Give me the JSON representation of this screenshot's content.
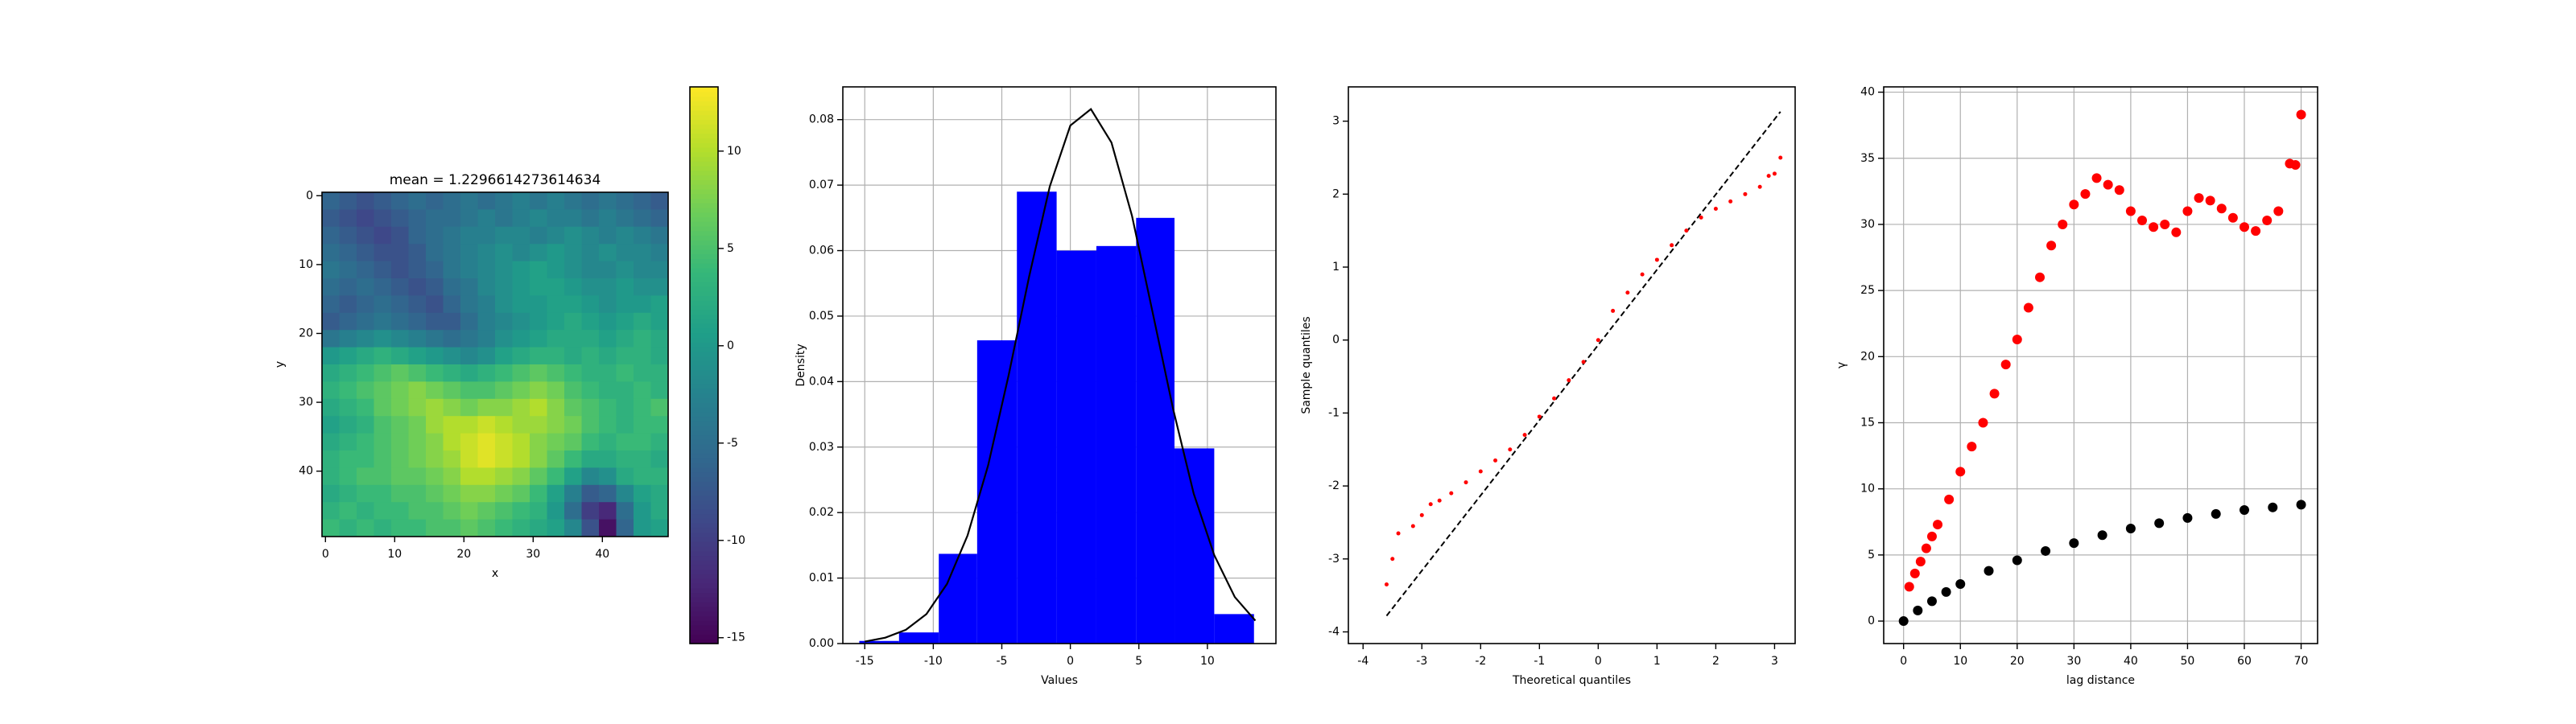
{
  "chart_data": [
    {
      "type": "heatmap",
      "title": "mean = 1.2296614273614634",
      "xlabel": "x",
      "ylabel": "y",
      "colormap": "viridis",
      "xlim": [
        -0.5,
        49.5
      ],
      "ylim": [
        49.5,
        -0.5
      ],
      "xticks": [
        0,
        10,
        20,
        30,
        40
      ],
      "yticks": [
        0,
        10,
        20,
        30,
        40
      ],
      "clim": [
        -15.3,
        13.3
      ],
      "cticks": [
        -15,
        -10,
        -5,
        0,
        5,
        10
      ],
      "z": [
        [
          -6,
          -7,
          -8,
          -7,
          -6,
          -5,
          -6,
          -5,
          -4,
          -5,
          -4,
          -3,
          -4,
          -3,
          -4,
          -5,
          -4,
          -5,
          -6,
          -7
        ],
        [
          -7,
          -8,
          -9,
          -8,
          -7,
          -6,
          -5,
          -5,
          -4,
          -3,
          -4,
          -3,
          -2,
          -3,
          -3,
          -4,
          -3,
          -4,
          -5,
          -6
        ],
        [
          -6,
          -7,
          -8,
          -9,
          -8,
          -6,
          -5,
          -4,
          -3,
          -3,
          -2,
          -2,
          -3,
          -2,
          -1,
          -2,
          -3,
          -2,
          -3,
          -4
        ],
        [
          -5,
          -6,
          -7,
          -8,
          -8,
          -7,
          -5,
          -4,
          -3,
          -2,
          -1,
          -2,
          -1,
          0,
          -1,
          -2,
          -1,
          -2,
          -2,
          -3
        ],
        [
          -4,
          -5,
          -6,
          -7,
          -8,
          -7,
          -6,
          -4,
          -3,
          -2,
          -1,
          0,
          1,
          0,
          -1,
          -2,
          -2,
          -1,
          -2,
          -2
        ],
        [
          -5,
          -6,
          -5,
          -6,
          -7,
          -8,
          -7,
          -5,
          -4,
          -2,
          -1,
          0,
          1,
          1,
          0,
          -1,
          -1,
          0,
          -1,
          -1
        ],
        [
          -6,
          -7,
          -6,
          -5,
          -6,
          -7,
          -8,
          -6,
          -4,
          -3,
          -1,
          0,
          0,
          1,
          1,
          0,
          -1,
          0,
          0,
          1
        ],
        [
          -7,
          -6,
          -5,
          -4,
          -5,
          -6,
          -7,
          -7,
          -5,
          -3,
          -2,
          -1,
          0,
          1,
          2,
          1,
          0,
          1,
          2,
          1
        ],
        [
          -4,
          -3,
          -2,
          -1,
          -2,
          -3,
          -4,
          -5,
          -4,
          -3,
          -1,
          0,
          1,
          2,
          2,
          2,
          1,
          2,
          3,
          2
        ],
        [
          0,
          1,
          2,
          3,
          2,
          1,
          0,
          -1,
          -2,
          -1,
          1,
          2,
          3,
          3,
          2,
          3,
          2,
          3,
          3,
          2
        ],
        [
          2,
          3,
          4,
          5,
          6,
          5,
          4,
          3,
          2,
          3,
          4,
          5,
          6,
          5,
          4,
          3,
          3,
          4,
          3,
          3
        ],
        [
          3,
          4,
          5,
          6,
          7,
          8,
          7,
          6,
          5,
          5,
          6,
          7,
          8,
          7,
          5,
          4,
          3,
          3,
          4,
          3
        ],
        [
          2,
          3,
          4,
          6,
          7,
          8,
          9,
          8,
          7,
          8,
          8,
          9,
          10,
          8,
          6,
          5,
          4,
          3,
          4,
          5
        ],
        [
          1,
          2,
          3,
          5,
          6,
          7,
          9,
          10,
          10,
          11,
          10,
          9,
          9,
          8,
          7,
          5,
          4,
          3,
          4,
          4
        ],
        [
          2,
          3,
          4,
          5,
          6,
          7,
          8,
          10,
          11,
          12,
          11,
          10,
          8,
          7,
          6,
          4,
          3,
          4,
          4,
          3
        ],
        [
          3,
          4,
          4,
          5,
          6,
          7,
          8,
          9,
          11,
          12,
          11,
          10,
          8,
          6,
          4,
          2,
          2,
          3,
          3,
          2
        ],
        [
          3,
          4,
          5,
          5,
          6,
          6,
          7,
          8,
          10,
          10,
          9,
          8,
          6,
          4,
          1,
          -2,
          -1,
          2,
          3,
          3
        ],
        [
          2,
          3,
          4,
          4,
          5,
          5,
          6,
          7,
          8,
          8,
          7,
          6,
          4,
          1,
          -3,
          -7,
          -6,
          -2,
          1,
          2
        ],
        [
          3,
          4,
          3,
          4,
          4,
          5,
          5,
          6,
          7,
          6,
          5,
          4,
          3,
          0,
          -5,
          -10,
          -12,
          -5,
          0,
          2
        ],
        [
          4,
          3,
          4,
          3,
          4,
          4,
          5,
          5,
          6,
          5,
          4,
          3,
          2,
          1,
          -2,
          -8,
          -14,
          -6,
          0,
          1
        ]
      ]
    },
    {
      "type": "histogram",
      "xlabel": "Values",
      "ylabel": "Density",
      "color": "#0000ff",
      "grid": true,
      "xlim": [
        -16.6,
        15.0
      ],
      "ylim": [
        0,
        0.085
      ],
      "xticks": [
        -15,
        -10,
        -5,
        0,
        5,
        10
      ],
      "yticks": [
        {
          "value": 0,
          "label": "0.00"
        },
        {
          "value": 0.01,
          "label": "0.01"
        },
        {
          "value": 0.02,
          "label": "0.02"
        },
        {
          "value": 0.03,
          "label": "0.03"
        },
        {
          "value": 0.04,
          "label": "0.04"
        },
        {
          "value": 0.05,
          "label": "0.05"
        },
        {
          "value": 0.06,
          "label": "0.06"
        },
        {
          "value": 0.07,
          "label": "0.07"
        },
        {
          "value": 0.08,
          "label": "0.08"
        }
      ],
      "bins": [
        -15.4,
        -12.5,
        -9.6,
        -6.8,
        -3.9,
        -1.0,
        1.9,
        4.8,
        7.6,
        10.5,
        13.4
      ],
      "values": [
        0.0004,
        0.0017,
        0.0137,
        0.0463,
        0.069,
        0.06,
        0.0607,
        0.065,
        0.0298,
        0.0045
      ],
      "curve": {
        "color": "#000000",
        "x": [
          -15,
          -13.5,
          -12,
          -10.5,
          -9,
          -7.5,
          -6,
          -4.5,
          -3,
          -1.5,
          0,
          1.5,
          3,
          4.5,
          6,
          7.5,
          9,
          10.5,
          12,
          13.5
        ],
        "y": [
          0.0003,
          0.0009,
          0.0021,
          0.0045,
          0.0091,
          0.0165,
          0.0272,
          0.041,
          0.0561,
          0.0698,
          0.0791,
          0.0816,
          0.0765,
          0.0653,
          0.0506,
          0.0358,
          0.0229,
          0.0135,
          0.0071,
          0.0035
        ]
      }
    },
    {
      "type": "scatter",
      "xlabel": "Theoretical quantiles",
      "ylabel": "Sample quantiles",
      "grid": false,
      "xlim": [
        -4.25,
        3.35
      ],
      "ylim": [
        -4.16,
        3.47
      ],
      "xticks": [
        -4,
        -3,
        -2,
        -1,
        0,
        1,
        2,
        3
      ],
      "yticks": [
        -4,
        -3,
        -2,
        -1,
        0,
        1,
        2,
        3
      ],
      "series": [
        {
          "color": "#ff0000",
          "marker_size": 2.5,
          "x": [
            -3.6,
            -3.5,
            -3.4,
            -3.15,
            -3.0,
            -2.85,
            -2.7,
            -2.5,
            -2.25,
            -2.0,
            -1.75,
            -1.5,
            -1.25,
            -1.0,
            -0.75,
            -0.5,
            -0.25,
            0,
            0.25,
            0.5,
            0.75,
            1.0,
            1.25,
            1.5,
            1.75,
            2.0,
            2.25,
            2.5,
            2.75,
            2.9,
            3.0,
            3.1
          ],
          "y": [
            -3.35,
            -3.0,
            -2.65,
            -2.55,
            -2.4,
            -2.25,
            -2.2,
            -2.1,
            -1.95,
            -1.8,
            -1.65,
            -1.5,
            -1.3,
            -1.05,
            -0.8,
            -0.55,
            -0.3,
            0,
            0.4,
            0.65,
            0.9,
            1.1,
            1.3,
            1.5,
            1.68,
            1.8,
            1.9,
            2.0,
            2.1,
            2.25,
            2.28,
            2.5
          ]
        }
      ],
      "line": {
        "color": "#000000",
        "x": [
          -3.6,
          3.1
        ],
        "y": [
          -3.78,
          3.13
        ]
      }
    },
    {
      "type": "scatter",
      "xlabel": "lag distance",
      "ylabel": "γ",
      "grid": true,
      "xlim": [
        -3.5,
        72.9
      ],
      "ylim": [
        -1.7,
        40.4
      ],
      "xticks": [
        0,
        10,
        20,
        30,
        40,
        50,
        60,
        70
      ],
      "yticks": [
        0,
        5,
        10,
        15,
        20,
        25,
        30,
        35,
        40
      ],
      "series": [
        {
          "color": "#ff0000",
          "marker_size": 6,
          "x": [
            1,
            2,
            3,
            4,
            5,
            6,
            8,
            10,
            12,
            14,
            16,
            18,
            20,
            22,
            24,
            26,
            28,
            30,
            32,
            34,
            36,
            38,
            40,
            42,
            44,
            46,
            48,
            50,
            52,
            54,
            56,
            58,
            60,
            62,
            64,
            66,
            68,
            69,
            70
          ],
          "y": [
            2.6,
            3.6,
            4.5,
            5.5,
            6.4,
            7.3,
            9.2,
            11.3,
            13.2,
            15.0,
            17.2,
            19.4,
            21.3,
            23.7,
            26.0,
            28.4,
            30.0,
            31.5,
            32.3,
            33.5,
            33.0,
            32.6,
            31.0,
            30.3,
            29.8,
            30.0,
            29.4,
            31.0,
            32.0,
            31.8,
            31.2,
            30.5,
            29.8,
            29.5,
            30.3,
            31.0,
            34.6,
            34.5,
            38.3
          ]
        },
        {
          "color": "#000000",
          "marker_size": 6,
          "x": [
            0,
            2.5,
            5,
            7.5,
            10,
            15,
            20,
            25,
            30,
            35,
            40,
            45,
            50,
            55,
            60,
            65,
            70
          ],
          "y": [
            0,
            0.8,
            1.5,
            2.2,
            2.8,
            3.8,
            4.6,
            5.3,
            5.9,
            6.5,
            7.0,
            7.4,
            7.8,
            8.1,
            8.4,
            8.6,
            8.8
          ]
        }
      ]
    }
  ]
}
